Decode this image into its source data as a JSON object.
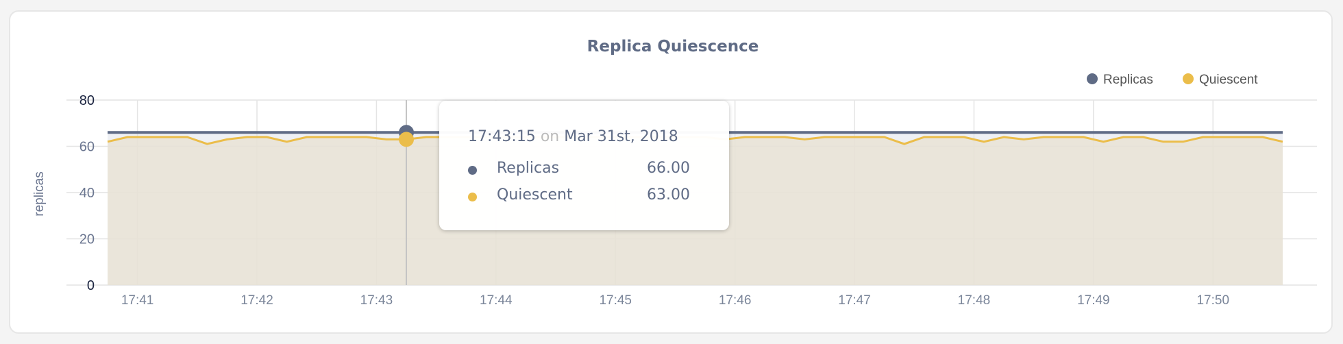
{
  "chart_data": {
    "type": "area",
    "title": "Replica Quiescence",
    "xlabel": "",
    "ylabel": "replicas",
    "ylim": [
      0,
      80
    ],
    "yticks": [
      "0",
      "20",
      "40",
      "60",
      "80"
    ],
    "xticks": [
      "17:41",
      "17:42",
      "17:43",
      "17:44",
      "17:45",
      "17:46",
      "17:47",
      "17:48",
      "17:49",
      "17:50"
    ],
    "grid": true,
    "legend_position": "top-right",
    "x_start": "17:40:45",
    "x_interval_seconds": 10,
    "series": [
      {
        "name": "Replicas",
        "color": "#5f6b85",
        "values": [
          66,
          66,
          66,
          66,
          66,
          66,
          66,
          66,
          66,
          66,
          66,
          66,
          66,
          66,
          66,
          66,
          66,
          66,
          66,
          66,
          66,
          66,
          66,
          66,
          66,
          66,
          66,
          66,
          66,
          66,
          66,
          66,
          66,
          66,
          66,
          66,
          66,
          66,
          66,
          66,
          66,
          66,
          66,
          66,
          66,
          66,
          66,
          66,
          66,
          66,
          66,
          66,
          66,
          66,
          66,
          66,
          66,
          66,
          66,
          66
        ]
      },
      {
        "name": "Quiescent",
        "color": "#ebbd4a",
        "values": [
          62,
          64,
          64,
          64,
          64,
          61,
          63,
          64,
          64,
          62,
          64,
          64,
          64,
          64,
          63,
          63,
          64,
          64,
          64,
          64,
          64,
          64,
          64,
          64,
          64,
          64,
          64,
          64,
          64,
          64,
          64,
          63,
          64,
          64,
          64,
          63,
          64,
          64,
          64,
          64,
          61,
          64,
          64,
          64,
          62,
          64,
          63,
          64,
          64,
          64,
          62,
          64,
          64,
          62,
          62,
          64,
          64,
          64,
          64,
          62
        ]
      }
    ]
  },
  "tooltip": {
    "time": "17:43:15",
    "on": "on",
    "date": "Mar 31st, 2018",
    "hover_index": 15,
    "rows": [
      {
        "name": "Replicas",
        "value": "66.00",
        "color": "#5f6b85"
      },
      {
        "name": "Quiescent",
        "value": "63.00",
        "color": "#ebbd4a"
      }
    ]
  }
}
